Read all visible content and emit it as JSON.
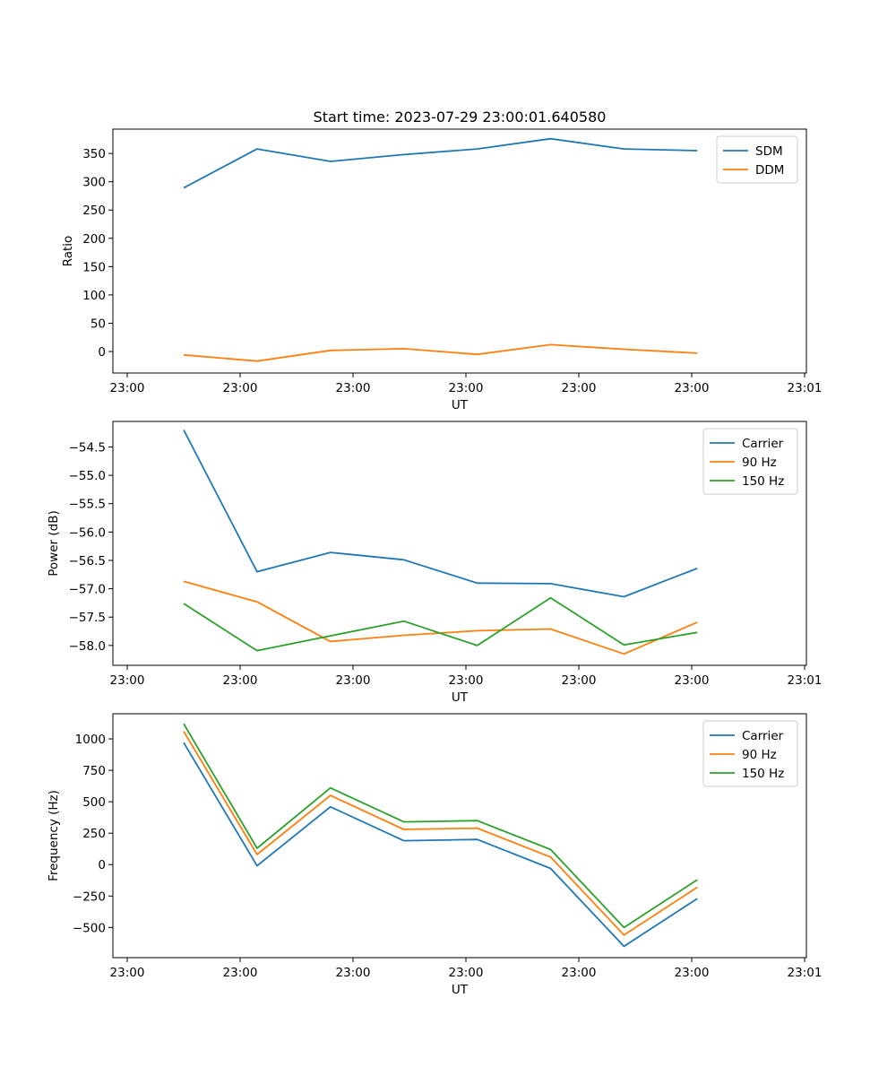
{
  "chart_data": [
    {
      "type": "line",
      "title": "Start time: 2023-07-29 23:00:01.640580",
      "xlabel": "UT",
      "ylabel": "Ratio",
      "xlim": [
        0,
        6
      ],
      "ylim": [
        -38,
        393
      ],
      "x": [
        0.5,
        1.15,
        1.8,
        2.45,
        3.1,
        3.75,
        4.4,
        5.05
      ],
      "xticks": [
        0,
        1,
        2,
        3,
        4,
        5,
        6
      ],
      "xtick_labels": [
        "23:00",
        "23:00",
        "23:00",
        "23:00",
        "23:00",
        "23:00",
        "23:01"
      ],
      "yticks": [
        0,
        50,
        100,
        150,
        200,
        250,
        300,
        350
      ],
      "ytick_labels": [
        "0",
        "50",
        "100",
        "150",
        "200",
        "250",
        "300",
        "350"
      ],
      "legend_position": "top-right",
      "series": [
        {
          "name": "SDM",
          "color": "#1f77b4",
          "values": [
            289,
            358,
            336,
            348,
            358,
            376,
            358,
            355
          ]
        },
        {
          "name": "DDM",
          "color": "#ff7f0e",
          "values": [
            -6,
            -17,
            2,
            5,
            -5,
            12,
            4,
            -3
          ]
        }
      ]
    },
    {
      "type": "line",
      "title": "",
      "xlabel": "UT",
      "ylabel": "Power (dB)",
      "xlim": [
        0,
        6
      ],
      "ylim": [
        -58.35,
        -54.05
      ],
      "x": [
        0.5,
        1.15,
        1.8,
        2.45,
        3.1,
        3.75,
        4.4,
        5.05
      ],
      "xticks": [
        0,
        1,
        2,
        3,
        4,
        5,
        6
      ],
      "xtick_labels": [
        "23:00",
        "23:00",
        "23:00",
        "23:00",
        "23:00",
        "23:00",
        "23:01"
      ],
      "yticks": [
        -58.0,
        -57.5,
        -57.0,
        -56.5,
        -56.0,
        -55.5,
        -55.0,
        -54.5
      ],
      "ytick_labels": [
        "−58.0",
        "−57.5",
        "−57.0",
        "−56.5",
        "−56.0",
        "−55.5",
        "−55.0",
        "−54.5"
      ],
      "legend_position": "top-right",
      "series": [
        {
          "name": "Carrier",
          "color": "#1f77b4",
          "values": [
            -54.2,
            -56.7,
            -56.36,
            -56.49,
            -56.9,
            -56.91,
            -57.14,
            -56.64
          ]
        },
        {
          "name": "90 Hz",
          "color": "#ff7f0e",
          "values": [
            -56.87,
            -57.23,
            -57.93,
            -57.82,
            -57.74,
            -57.71,
            -58.15,
            -57.59
          ]
        },
        {
          "name": "150 Hz",
          "color": "#2ca02c",
          "values": [
            -57.26,
            -58.09,
            -57.83,
            -57.57,
            -58.0,
            -57.16,
            -57.99,
            -57.77
          ]
        }
      ]
    },
    {
      "type": "line",
      "title": "",
      "xlabel": "UT",
      "ylabel": "Frequency (Hz)",
      "xlim": [
        0,
        6
      ],
      "ylim": [
        -740,
        1200
      ],
      "x": [
        0.5,
        1.15,
        1.8,
        2.45,
        3.1,
        3.75,
        4.4,
        5.05
      ],
      "xticks": [
        0,
        1,
        2,
        3,
        4,
        5,
        6
      ],
      "xtick_labels": [
        "23:00",
        "23:00",
        "23:00",
        "23:00",
        "23:00",
        "23:00",
        "23:01"
      ],
      "yticks": [
        -500,
        -250,
        0,
        250,
        500,
        750,
        1000
      ],
      "ytick_labels": [
        "−500",
        "−250",
        "0",
        "250",
        "500",
        "750",
        "1000"
      ],
      "legend_position": "top-right",
      "series": [
        {
          "name": "Carrier",
          "color": "#1f77b4",
          "values": [
            970,
            -10,
            460,
            190,
            200,
            -30,
            -650,
            -270
          ]
        },
        {
          "name": "90 Hz",
          "color": "#ff7f0e",
          "values": [
            1060,
            80,
            550,
            280,
            290,
            60,
            -560,
            -180
          ]
        },
        {
          "name": "150 Hz",
          "color": "#2ca02c",
          "values": [
            1120,
            130,
            610,
            340,
            350,
            120,
            -500,
            -120
          ]
        }
      ]
    }
  ]
}
